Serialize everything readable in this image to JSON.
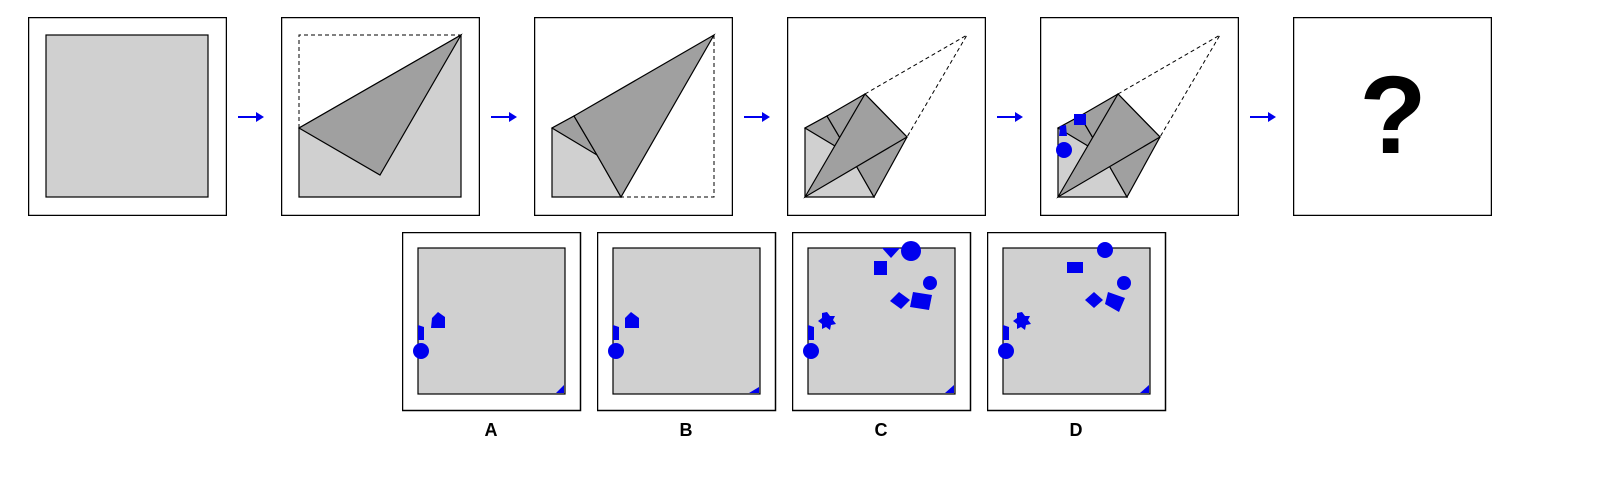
{
  "colors": {
    "sheet": "#d0d0d0",
    "folded_flap": "#a0a0a0",
    "outline": "#000000",
    "mark": "#0000ee",
    "arrow": "#0000ee"
  },
  "steps": [
    {
      "name": "unfolded-square"
    },
    {
      "name": "fold-1"
    },
    {
      "name": "fold-2"
    },
    {
      "name": "fold-3"
    },
    {
      "name": "punched-shapes"
    },
    {
      "name": "unknown-result"
    }
  ],
  "question_mark": "?",
  "options": [
    {
      "label": "A"
    },
    {
      "label": "B"
    },
    {
      "label": "C"
    },
    {
      "label": "D"
    }
  ]
}
